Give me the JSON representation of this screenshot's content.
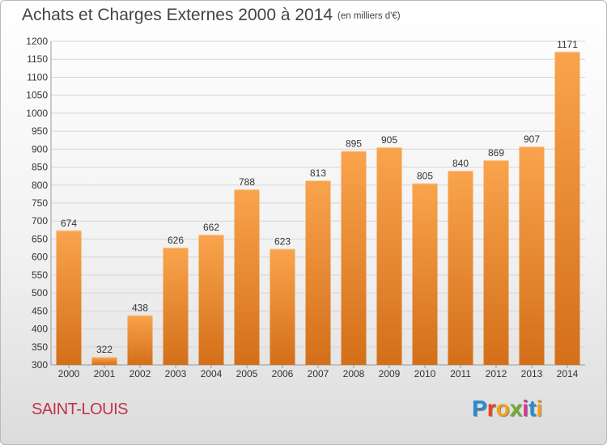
{
  "header": {
    "title": "Achats et Charges Externes 2000 à 2014",
    "unit": "(en milliers d'€)"
  },
  "footer": {
    "commune": "SAINT-LOUIS",
    "logo_text": "Proxiti",
    "logo_colors": [
      "#2a8ccf",
      "#e8441c",
      "#f3a21b",
      "#6fae2e",
      "#d4349b",
      "#2a8ccf",
      "#f3a21b"
    ]
  },
  "colors": {
    "bar_light": "#f9a44d",
    "bar_dark": "#d46f19",
    "grid": "#d6d6d6",
    "axis_text": "#333333"
  },
  "chart_data": {
    "type": "bar",
    "categories": [
      "2000",
      "2001",
      "2002",
      "2003",
      "2004",
      "2005",
      "2006",
      "2007",
      "2008",
      "2009",
      "2010",
      "2011",
      "2012",
      "2013",
      "2014"
    ],
    "values": [
      674,
      322,
      438,
      626,
      662,
      788,
      623,
      813,
      895,
      905,
      805,
      840,
      869,
      907,
      1171
    ],
    "y_ticks": [
      300,
      350,
      400,
      450,
      500,
      550,
      600,
      650,
      700,
      750,
      800,
      850,
      900,
      950,
      1000,
      1050,
      1100,
      1150,
      1200
    ],
    "ylim": [
      300,
      1200
    ],
    "grid": true,
    "title": "Achats et Charges Externes 2000 à 2014"
  }
}
